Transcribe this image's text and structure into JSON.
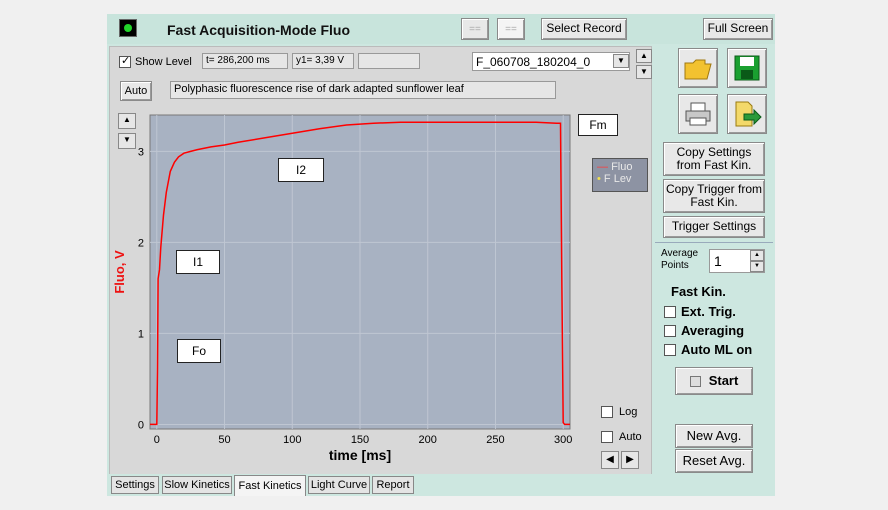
{
  "titlebar": {
    "title": "Fast Acquisition-Mode  Fluo",
    "btn_eq1": "==",
    "btn_eq2": "==",
    "select_record": "Select Record",
    "full_screen": "Full Screen"
  },
  "toolbar": {
    "show_level": "Show Level",
    "t_readout": "t= 286,200 ms",
    "y_readout": "y1= 3,39 V",
    "record_name": "F_060708_180204_0",
    "auto": "Auto",
    "description": "Polyphasic fluorescence rise of dark adapted sunflower leaf"
  },
  "chart_data": {
    "type": "line",
    "xlabel": "time [ms]",
    "ylabel": "Fluo, V",
    "xlim": [
      -5,
      305
    ],
    "ylim": [
      -0.05,
      3.4
    ],
    "xticks": [
      0,
      50,
      100,
      150,
      200,
      250,
      300
    ],
    "yticks": [
      0,
      1,
      2,
      3
    ],
    "grid": true,
    "legend": [
      "Fluo",
      "F Lev"
    ],
    "legend_position": "right",
    "annotations": [
      "Fm",
      "I2",
      "I1",
      "Fo"
    ],
    "series": [
      {
        "name": "Fluo",
        "color": "#ff0000",
        "x": [
          -5,
          0,
          0.5,
          1,
          2,
          3,
          5,
          7,
          10,
          13,
          16,
          20,
          25,
          30,
          40,
          50,
          60,
          80,
          100,
          120,
          140,
          160,
          180,
          200,
          220,
          240,
          260,
          280,
          295,
          298,
          299,
          300,
          301,
          305
        ],
        "y": [
          0.0,
          0.0,
          0.6,
          1.6,
          1.7,
          1.95,
          2.3,
          2.55,
          2.78,
          2.88,
          2.94,
          2.98,
          3.0,
          3.02,
          3.05,
          3.07,
          3.1,
          3.15,
          3.2,
          3.25,
          3.29,
          3.31,
          3.32,
          3.32,
          3.32,
          3.32,
          3.32,
          3.32,
          3.31,
          3.31,
          1.5,
          0.02,
          0.0,
          0.0
        ]
      }
    ]
  },
  "plot_controls": {
    "log": "Log",
    "auto": "Auto"
  },
  "side": {
    "copy_settings": "Copy Settings from Fast Kin.",
    "copy_trigger": "Copy Trigger from Fast Kin.",
    "trigger_settings": "Trigger Settings",
    "average_points_label": "Average Points",
    "average_points_value": "1",
    "fast_kin": "Fast Kin.",
    "ext_trig": "Ext. Trig.",
    "averaging": "Averaging",
    "auto_ml_on": "Auto ML on",
    "start": "Start",
    "new_avg": "New Avg.",
    "reset_avg": "Reset Avg."
  },
  "tabs": [
    "Settings",
    "Slow Kinetics",
    "Fast Kinetics",
    "Light Curve",
    "Report"
  ]
}
